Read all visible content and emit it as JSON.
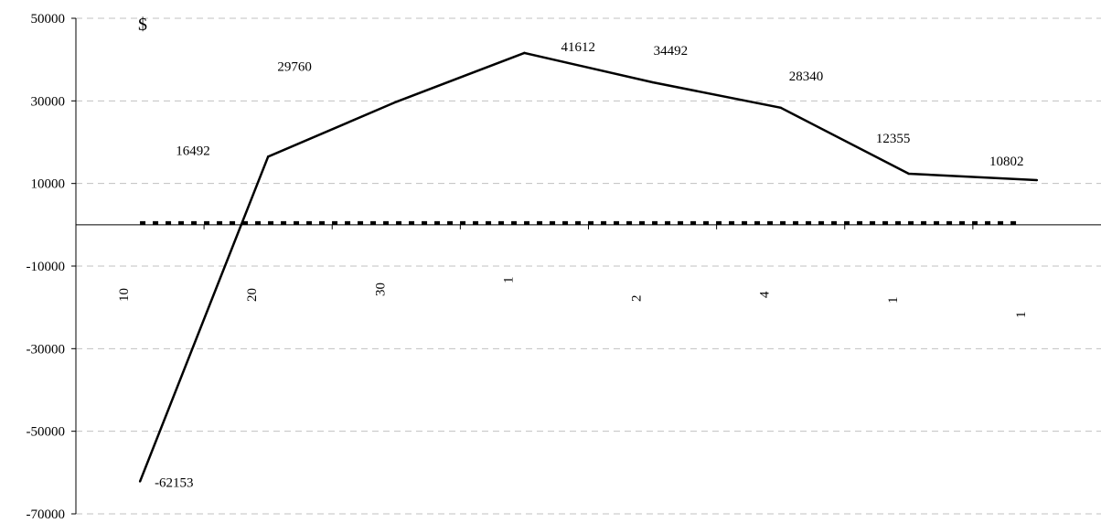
{
  "chart_data": {
    "type": "line",
    "unit_label": "$",
    "categories": [
      "10",
      "20",
      "30",
      "1",
      "2",
      "4",
      "1",
      "1"
    ],
    "series": [
      {
        "values": [
          -62153,
          16492,
          29760,
          41612,
          34492,
          28340,
          12355,
          10802
        ],
        "data_labels": [
          "-62153",
          "16492",
          "29760",
          "41612",
          "34492",
          "28340",
          "12355",
          "10802"
        ],
        "color": "#000000"
      }
    ],
    "reference_line": {
      "value": 0,
      "style": "dotted",
      "color": "#000000"
    },
    "ylim": [
      -70000,
      50000
    ],
    "yticks": [
      50000,
      30000,
      10000,
      -10000,
      -30000,
      -50000,
      -70000
    ],
    "ytick_labels": [
      "50000",
      "30000",
      "10000",
      "-10000",
      "-30000",
      "-50000",
      "-70000"
    ],
    "grid": true,
    "grid_style": "dashed",
    "grid_color": "#c0c0c0",
    "legend": "none"
  }
}
